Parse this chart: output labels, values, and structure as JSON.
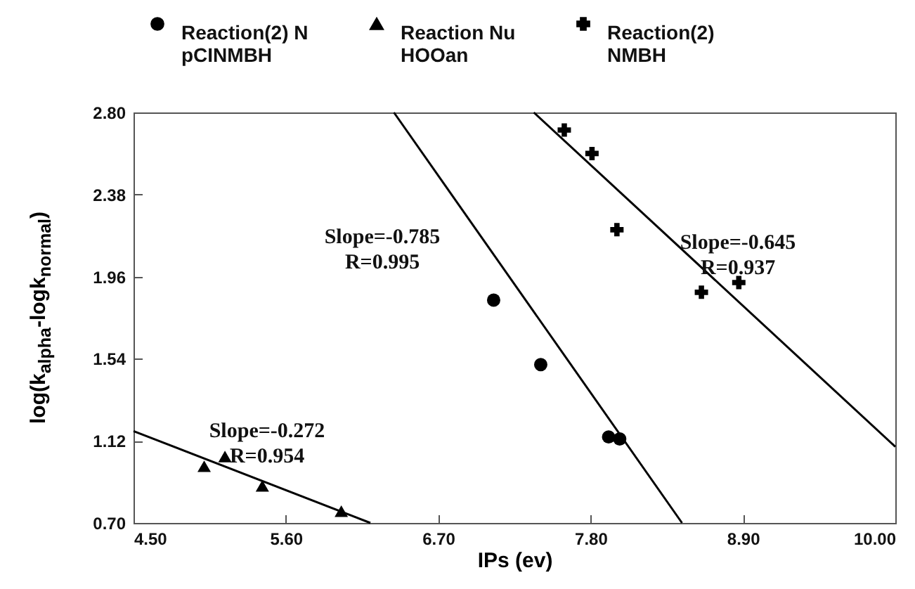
{
  "chart_data": {
    "type": "scatter",
    "xlabel": "IPs (ev)",
    "ylabel": "log(k$_{alpha}$-logk$_{normal}$)",
    "xlim": [
      4.5,
      10.0
    ],
    "ylim": [
      0.7,
      2.8
    ],
    "xticks": [
      {
        "value": 4.5,
        "label": "4.50"
      },
      {
        "value": 5.6,
        "label": "5.60"
      },
      {
        "value": 6.7,
        "label": "6.70"
      },
      {
        "value": 7.8,
        "label": "7.80"
      },
      {
        "value": 8.9,
        "label": "8.90"
      },
      {
        "value": 10.0,
        "label": "10.00"
      }
    ],
    "yticks": [
      {
        "value": 0.7,
        "label": "0.70"
      },
      {
        "value": 1.12,
        "label": "1.12"
      },
      {
        "value": 1.54,
        "label": "1.54"
      },
      {
        "value": 1.96,
        "label": "1.96"
      },
      {
        "value": 2.38,
        "label": "2.38"
      },
      {
        "value": 2.8,
        "label": "2.80"
      }
    ],
    "grid": false,
    "legend": "top",
    "series": [
      {
        "name": "Reaction(2) N pCINMBH",
        "type": "scatter",
        "marker": "circle",
        "color": "#000000",
        "x": [
          7.1,
          7.44,
          7.93,
          8.01
        ],
        "values": [
          1.84,
          1.51,
          1.14,
          1.13
        ]
      },
      {
        "name": "Reaction Nu HOOan",
        "type": "scatter",
        "marker": "triangle",
        "color": "#000000",
        "x": [
          5.01,
          5.16,
          5.43,
          6.0
        ],
        "values": [
          0.99,
          1.04,
          0.89,
          0.76
        ]
      },
      {
        "name": "Reaction(2) NMBH",
        "type": "scatter",
        "marker": "cross",
        "color": "#000000",
        "x": [
          7.61,
          7.81,
          7.99,
          8.6,
          8.87
        ],
        "values": [
          2.71,
          2.59,
          2.2,
          1.88,
          1.93
        ]
      },
      {
        "type": "line",
        "color": "#000000",
        "marker": "none",
        "line_style": "solid",
        "x": [
          6.38,
          8.46
        ],
        "values": [
          2.8,
          0.7
        ]
      },
      {
        "type": "line",
        "color": "#000000",
        "marker": "none",
        "line_style": "solid",
        "x": [
          4.5,
          6.21
        ],
        "values": [
          1.17,
          0.7
        ]
      },
      {
        "type": "line",
        "color": "#000000",
        "marker": "none",
        "line_style": "solid",
        "x": [
          7.39,
          10.0
        ],
        "values": [
          2.8,
          1.09
        ]
      }
    ],
    "annotations": [
      "Slope=-0.785\nR=0.995",
      "Slope=-0.272\nR=0.954",
      "Slope=-0.645\nR=0.937"
    ]
  }
}
